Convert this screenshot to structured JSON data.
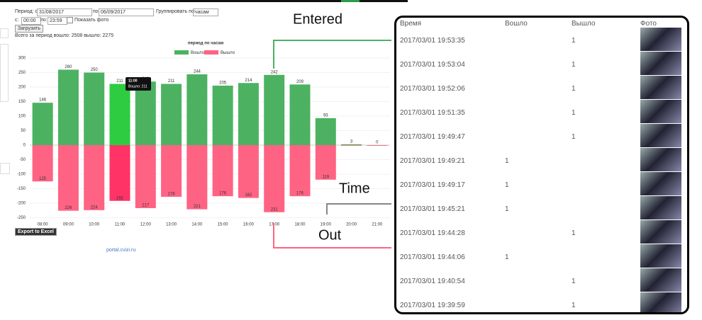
{
  "form": {
    "period_label": "Период: с",
    "date_from": "31/08/2017",
    "to_label": "по",
    "date_to": "06/09/2017",
    "group_label": "Группировать по:",
    "group_value": "часам",
    "time_from_label": "с:",
    "time_from": "00:00",
    "time_to_label": "по:",
    "time_to": "23:59",
    "show_photo": "Показать фото",
    "load_button": "Загрузить",
    "summary": "Всего за период вошло: 2508 вышло: 2275"
  },
  "chart_data": {
    "type": "bar",
    "title": "период по часам",
    "categories": [
      "08:00",
      "09:00",
      "10:00",
      "11:00",
      "12:00",
      "13:00",
      "14:00",
      "15:00",
      "16:00",
      "17:00",
      "18:00",
      "19:00",
      "20:00",
      "21:00"
    ],
    "series": [
      {
        "name": "Вошло",
        "color": "#4cb262",
        "values": [
          146,
          260,
          250,
          211,
          219,
          211,
          244,
          205,
          214,
          242,
          209,
          93,
          3,
          0
        ]
      },
      {
        "name": "Вышло",
        "color": "#ff6384",
        "values": [
          -125,
          -226,
          -224,
          -192,
          -217,
          -178,
          -221,
          -176,
          -182,
          -231,
          -176,
          -119,
          -2,
          0
        ],
        "value_labels": [
          "125",
          "226",
          "224",
          "192",
          "217",
          "178",
          "221",
          "176",
          "182",
          "231",
          "176",
          "119",
          null,
          null
        ]
      }
    ],
    "ylim": [
      -250,
      300
    ],
    "yticks": [
      300,
      250,
      200,
      150,
      100,
      50,
      0,
      -50,
      -100,
      -150,
      -200,
      -250
    ],
    "grid": true,
    "legend": "top",
    "tooltip": {
      "title": "11:00",
      "text": "Вошло: 211"
    }
  },
  "export_button": "Export to Excel",
  "footer_link": "portal.cvizi.ru",
  "annotations": {
    "entered": "Entered",
    "time": "Time",
    "out": "Out"
  },
  "table": {
    "columns": [
      "Время",
      "Вошло",
      "Вышло",
      "Фото"
    ],
    "rows": [
      {
        "time": "2017/03/01 19:53:35",
        "out": 1
      },
      {
        "time": "2017/03/01 19:53:04",
        "out": 1
      },
      {
        "time": "2017/03/01 19:52:06",
        "out": 1
      },
      {
        "time": "2017/03/01 19:51:35",
        "out": 1
      },
      {
        "time": "2017/03/01 19:49:47",
        "out": 1
      },
      {
        "time": "2017/03/01 19:49:21",
        "in": 1
      },
      {
        "time": "2017/03/01 19:49:17",
        "in": 1
      },
      {
        "time": "2017/03/01 19:45:21",
        "in": 1
      },
      {
        "time": "2017/03/01 19:44:28",
        "out": 1
      },
      {
        "time": "2017/03/01 19:44:06",
        "in": 1
      },
      {
        "time": "2017/03/01 19:40:54",
        "out": 1
      },
      {
        "time": "2017/03/01 19:39:59",
        "out": 1
      }
    ]
  }
}
